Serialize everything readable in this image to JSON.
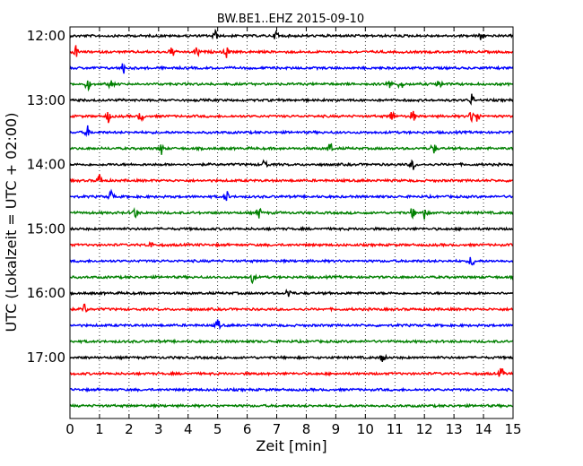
{
  "chart_data": {
    "type": "line",
    "title": "BW.BE1..EHZ 2015-09-10",
    "xlabel": "Zeit  [min]",
    "ylabel": "UTC (Lokalzeit = UTC + 02:00)",
    "xlim": [
      0,
      15
    ],
    "x_ticks": [
      0,
      1,
      2,
      3,
      4,
      5,
      6,
      7,
      8,
      9,
      10,
      11,
      12,
      13,
      14,
      15
    ],
    "y_tick_labels": [
      "12:00",
      "13:00",
      "14:00",
      "15:00",
      "16:00",
      "17:00"
    ],
    "grid": "vertical dotted",
    "rows": [
      {
        "start": "12:00",
        "color": "#000000",
        "events": [
          4.9,
          7.0,
          13.9
        ]
      },
      {
        "start": "12:15",
        "color": "#ff0000",
        "events": [
          0.2,
          3.45,
          4.3,
          5.3
        ]
      },
      {
        "start": "12:30",
        "color": "#0000ff",
        "events": [
          1.8
        ]
      },
      {
        "start": "12:45",
        "color": "#008000",
        "events": [
          0.6,
          1.4,
          10.8,
          11.2,
          12.5
        ]
      },
      {
        "start": "13:00",
        "color": "#000000",
        "events": [
          13.6
        ]
      },
      {
        "start": "13:15",
        "color": "#ff0000",
        "events": [
          1.3,
          2.4,
          10.9,
          11.6,
          13.6,
          13.8
        ]
      },
      {
        "start": "13:30",
        "color": "#0000ff",
        "events": [
          0.6
        ]
      },
      {
        "start": "13:45",
        "color": "#008000",
        "events": [
          3.1,
          8.8,
          12.3
        ]
      },
      {
        "start": "14:00",
        "color": "#000000",
        "events": [
          6.6,
          11.6
        ]
      },
      {
        "start": "14:15",
        "color": "#ff0000",
        "events": [
          1.0
        ]
      },
      {
        "start": "14:30",
        "color": "#0000ff",
        "events": [
          1.4,
          5.3
        ]
      },
      {
        "start": "14:45",
        "color": "#008000",
        "events": [
          2.2,
          6.4,
          11.6,
          12.0
        ]
      },
      {
        "start": "15:00",
        "color": "#000000",
        "events": []
      },
      {
        "start": "15:15",
        "color": "#ff0000",
        "events": [
          2.7
        ]
      },
      {
        "start": "15:30",
        "color": "#0000ff",
        "events": [
          13.6
        ]
      },
      {
        "start": "15:45",
        "color": "#008000",
        "events": [
          6.2
        ]
      },
      {
        "start": "16:00",
        "color": "#000000",
        "events": [
          7.4
        ]
      },
      {
        "start": "16:15",
        "color": "#ff0000",
        "events": [
          0.5
        ]
      },
      {
        "start": "16:30",
        "color": "#0000ff",
        "events": [
          5.0
        ]
      },
      {
        "start": "16:45",
        "color": "#008000",
        "events": []
      },
      {
        "start": "17:00",
        "color": "#000000",
        "events": [
          10.6
        ]
      },
      {
        "start": "17:15",
        "color": "#ff0000",
        "events": [
          14.6
        ]
      },
      {
        "start": "17:30",
        "color": "#0000ff",
        "events": []
      },
      {
        "start": "17:45",
        "color": "#008000",
        "events": []
      }
    ]
  }
}
